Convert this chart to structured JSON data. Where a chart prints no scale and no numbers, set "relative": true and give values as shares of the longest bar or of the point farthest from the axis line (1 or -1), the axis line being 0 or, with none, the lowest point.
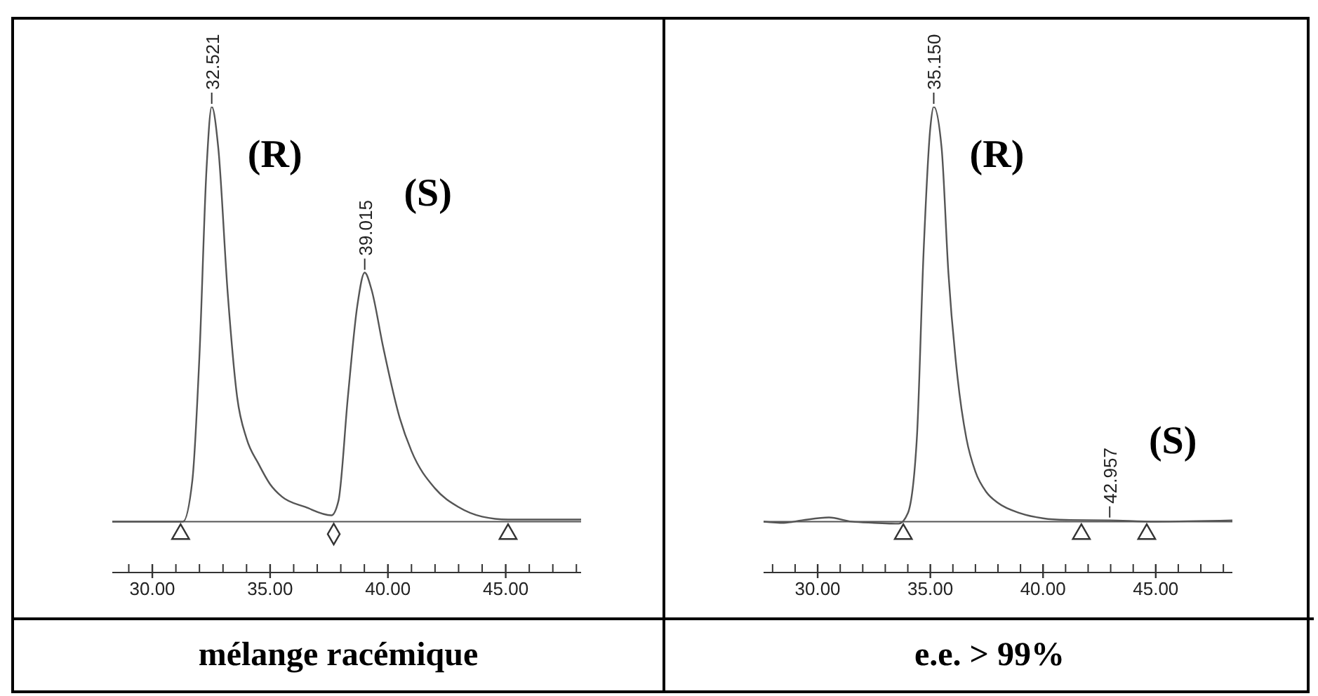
{
  "chart_data": [
    {
      "type": "line",
      "relative": true,
      "xlim": [
        28.3,
        48.2
      ],
      "xticks": [
        {
          "value": 30,
          "label": "30.00"
        },
        {
          "value": 35,
          "label": "35.00"
        },
        {
          "value": 40,
          "label": "40.00"
        },
        {
          "value": 45,
          "label": "45.00"
        }
      ],
      "series": [
        {
          "color": "#555555",
          "x": [
            28.3,
            31.3,
            31.7,
            32.0,
            32.3,
            32.521,
            32.8,
            33.2,
            33.6,
            34.0,
            34.5,
            35.0,
            35.5,
            36.5,
            37.6,
            37.9,
            38.3,
            38.7,
            39.015,
            39.3,
            39.8,
            40.5,
            41.0,
            42.0,
            43.0,
            44.0,
            45.1,
            48.2
          ],
          "values": [
            0,
            0,
            0.1,
            0.4,
            0.85,
            1,
            0.9,
            0.55,
            0.3,
            0.2,
            0.14,
            0.09,
            0.06,
            0.035,
            0.015,
            0.05,
            0.3,
            0.52,
            0.6,
            0.56,
            0.42,
            0.25,
            0.17,
            0.08,
            0.035,
            0.012,
            0.005,
            0.005
          ]
        },
        {
          "type": "scatter",
          "marker": "triangle",
          "color": "#333333",
          "x": [
            31.2,
            45.1
          ],
          "values": [
            -0.03,
            -0.03
          ]
        },
        {
          "type": "scatter",
          "marker": "diamond",
          "color": "#333333",
          "x": [
            37.7
          ],
          "values": [
            -0.03
          ]
        }
      ],
      "ref_lines": [
        {
          "axis": "y",
          "value": 0,
          "color": "#555555"
        }
      ],
      "annotations": [
        {
          "text": "32.521",
          "x": 32.521,
          "y": 1
        },
        {
          "text": "(R)",
          "x": 32.521,
          "y": 1
        },
        {
          "text": "39.015",
          "x": 39.015,
          "y": 0.6
        },
        {
          "text": "(S)",
          "x": 39.015,
          "y": 0.6
        },
        "mélange racémique"
      ]
    },
    {
      "type": "line",
      "relative": true,
      "xlim": [
        27.6,
        48.4
      ],
      "xticks": [
        {
          "value": 30,
          "label": "30.00"
        },
        {
          "value": 35,
          "label": "35.00"
        },
        {
          "value": 40,
          "label": "40.00"
        },
        {
          "value": 45,
          "label": "45.00"
        }
      ],
      "series": [
        {
          "color": "#555555",
          "x": [
            27.6,
            28.5,
            29.3,
            30.5,
            31.5,
            32.5,
            33.6,
            34.0,
            34.4,
            34.7,
            35.0,
            35.15,
            35.5,
            35.8,
            36.2,
            36.6,
            37.0,
            37.5,
            38.0,
            39.0,
            40.0,
            41.0,
            42.957,
            45.0,
            48.4
          ],
          "values": [
            0,
            -0.003,
            0.003,
            0.01,
            0,
            -0.003,
            -0.005,
            0.02,
            0.2,
            0.65,
            0.95,
            1,
            0.9,
            0.6,
            0.35,
            0.2,
            0.12,
            0.07,
            0.045,
            0.02,
            0.008,
            0.004,
            0.003,
            0,
            0.003
          ]
        },
        {
          "type": "scatter",
          "marker": "triangle",
          "color": "#333333",
          "x": [
            33.8,
            41.7,
            44.6
          ],
          "values": [
            -0.03,
            -0.03,
            -0.03
          ]
        }
      ],
      "ref_lines": [
        {
          "axis": "y",
          "value": 0,
          "color": "#555555"
        }
      ],
      "annotations": [
        {
          "text": "35.150",
          "x": 35.15,
          "y": 1
        },
        {
          "text": "(R)",
          "x": 35.15,
          "y": 1
        },
        {
          "text": "42.957",
          "x": 42.957,
          "y": 0.003
        },
        {
          "text": "(S)",
          "x": 42.957,
          "y": 0.003
        },
        "e.e. > 99%"
      ]
    }
  ]
}
